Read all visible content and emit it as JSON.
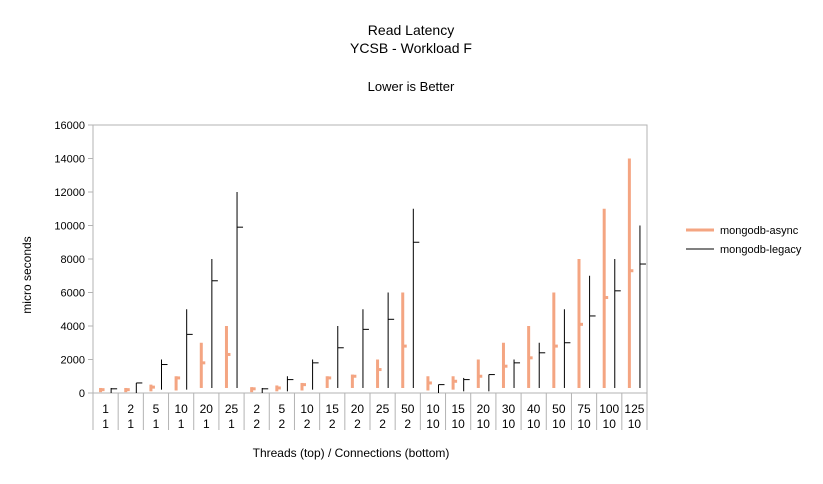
{
  "chart_data": {
    "type": "high-low-close",
    "title": "Read Latency",
    "subtitle": "YCSB - Workload F",
    "note": "Lower is Better",
    "xlabel": "Threads (top)  / Connections (bottom)",
    "ylabel": "micro seconds",
    "ylim": [
      0,
      16000
    ],
    "yticks": [
      0,
      2000,
      4000,
      6000,
      8000,
      10000,
      12000,
      14000,
      16000
    ],
    "grid": false,
    "legend_position": "right",
    "categories": [
      {
        "threads": "1",
        "connections": "1"
      },
      {
        "threads": "2",
        "connections": "1"
      },
      {
        "threads": "5",
        "connections": "1"
      },
      {
        "threads": "10",
        "connections": "1"
      },
      {
        "threads": "20",
        "connections": "1"
      },
      {
        "threads": "25",
        "connections": "1"
      },
      {
        "threads": "2",
        "connections": "2"
      },
      {
        "threads": "5",
        "connections": "2"
      },
      {
        "threads": "10",
        "connections": "2"
      },
      {
        "threads": "15",
        "connections": "2"
      },
      {
        "threads": "20",
        "connections": "2"
      },
      {
        "threads": "25",
        "connections": "2"
      },
      {
        "threads": "50",
        "connections": "2"
      },
      {
        "threads": "10",
        "connections": "10"
      },
      {
        "threads": "15",
        "connections": "10"
      },
      {
        "threads": "20",
        "connections": "10"
      },
      {
        "threads": "30",
        "connections": "10"
      },
      {
        "threads": "40",
        "connections": "10"
      },
      {
        "threads": "50",
        "connections": "10"
      },
      {
        "threads": "75",
        "connections": "10"
      },
      {
        "threads": "100",
        "connections": "10"
      },
      {
        "threads": "125",
        "connections": "10"
      }
    ],
    "series": [
      {
        "name": "mongodb-async",
        "color": "#f4a582",
        "low": [
          50,
          50,
          100,
          150,
          300,
          300,
          50,
          100,
          150,
          300,
          300,
          300,
          300,
          150,
          200,
          300,
          300,
          300,
          300,
          300,
          300,
          300
        ],
        "high": [
          300,
          300,
          500,
          1000,
          3000,
          4000,
          350,
          450,
          600,
          1000,
          1100,
          2000,
          6000,
          1000,
          1000,
          2000,
          3000,
          4000,
          6000,
          8000,
          11000,
          14000
        ],
        "close": [
          200,
          200,
          350,
          900,
          1800,
          2300,
          250,
          300,
          500,
          900,
          1000,
          1400,
          2800,
          600,
          700,
          1000,
          1600,
          2100,
          2800,
          4100,
          5700,
          7300
        ]
      },
      {
        "name": "mongodb-legacy",
        "color": "#000000",
        "low": [
          0,
          0,
          200,
          200,
          300,
          300,
          0,
          100,
          200,
          300,
          300,
          300,
          300,
          0,
          100,
          100,
          300,
          300,
          300,
          300,
          300,
          300
        ],
        "high": [
          300,
          600,
          2000,
          5000,
          8000,
          12000,
          300,
          1000,
          2000,
          4000,
          5000,
          6000,
          11000,
          500,
          900,
          1100,
          2000,
          3000,
          5000,
          7000,
          8000,
          10000
        ],
        "close": [
          250,
          600,
          1700,
          3500,
          6700,
          9900,
          250,
          800,
          1800,
          2700,
          3800,
          4400,
          9000,
          500,
          800,
          1100,
          1800,
          2400,
          3000,
          4600,
          6100,
          7700
        ]
      }
    ]
  }
}
